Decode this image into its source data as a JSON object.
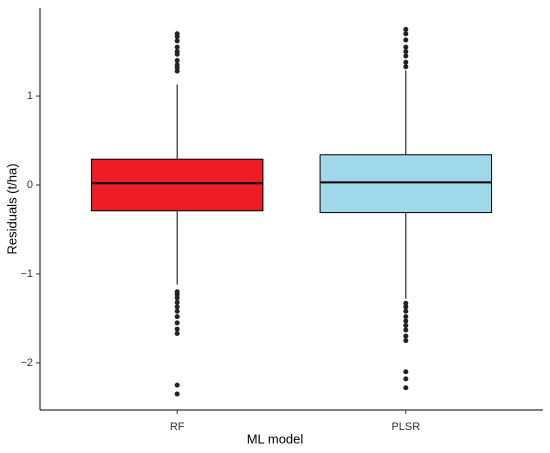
{
  "chart_data": {
    "type": "box",
    "x_label": "ML model",
    "y_label": "Residuals (t/ha)",
    "categories": [
      "RF",
      "PLSR"
    ],
    "boxes": [
      {
        "color": "#ee1c25",
        "whisker_low": -1.12,
        "q1": -0.29,
        "median": 0.02,
        "q3": 0.29,
        "whisker_high": 1.13,
        "outliers": [
          1.7,
          1.67,
          1.62,
          1.55,
          1.5,
          1.47,
          1.4,
          1.35,
          1.32,
          1.28,
          -1.2,
          -1.23,
          -1.27,
          -1.32,
          -1.37,
          -1.42,
          -1.48,
          -1.55,
          -1.62,
          -1.67,
          -2.25,
          -2.35
        ]
      },
      {
        "color": "#9fd9e9",
        "whisker_low": -1.28,
        "q1": -0.31,
        "median": 0.03,
        "q3": 0.34,
        "whisker_high": 1.29,
        "outliers": [
          1.75,
          1.7,
          1.63,
          1.55,
          1.5,
          1.45,
          1.38,
          1.33,
          -1.33,
          -1.37,
          -1.42,
          -1.48,
          -1.53,
          -1.58,
          -1.63,
          -1.7,
          -1.75,
          -2.1,
          -2.18,
          -2.28
        ]
      }
    ],
    "ylim": [
      -2.53,
      1.99
    ],
    "yticks": [
      {
        "value": -2,
        "label": "−2"
      },
      {
        "value": -1,
        "label": "−1"
      },
      0,
      1
    ],
    "grid": false
  }
}
